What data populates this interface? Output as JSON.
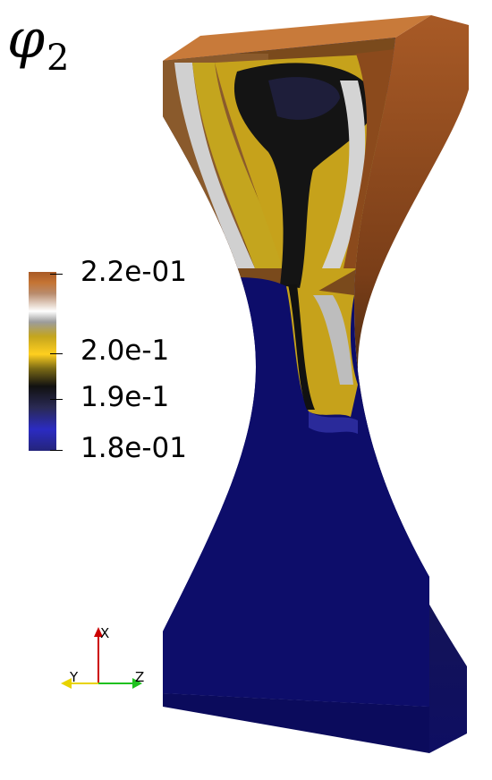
{
  "title": {
    "symbol": "φ",
    "subscript": "2"
  },
  "colorbar": {
    "labels": [
      "2.2e-01",
      "2.0e-1",
      "1.9e-1",
      "1.8e-01"
    ],
    "colors": [
      "#c57434",
      "#ffffff",
      "#ffcf1f",
      "#111111",
      "#2b2bc2"
    ]
  },
  "axes": {
    "x": "X",
    "y": "Y",
    "z": "Z",
    "colors": {
      "x": "#cc0000",
      "y": "#e8d300",
      "z": "#1fc11f"
    }
  }
}
